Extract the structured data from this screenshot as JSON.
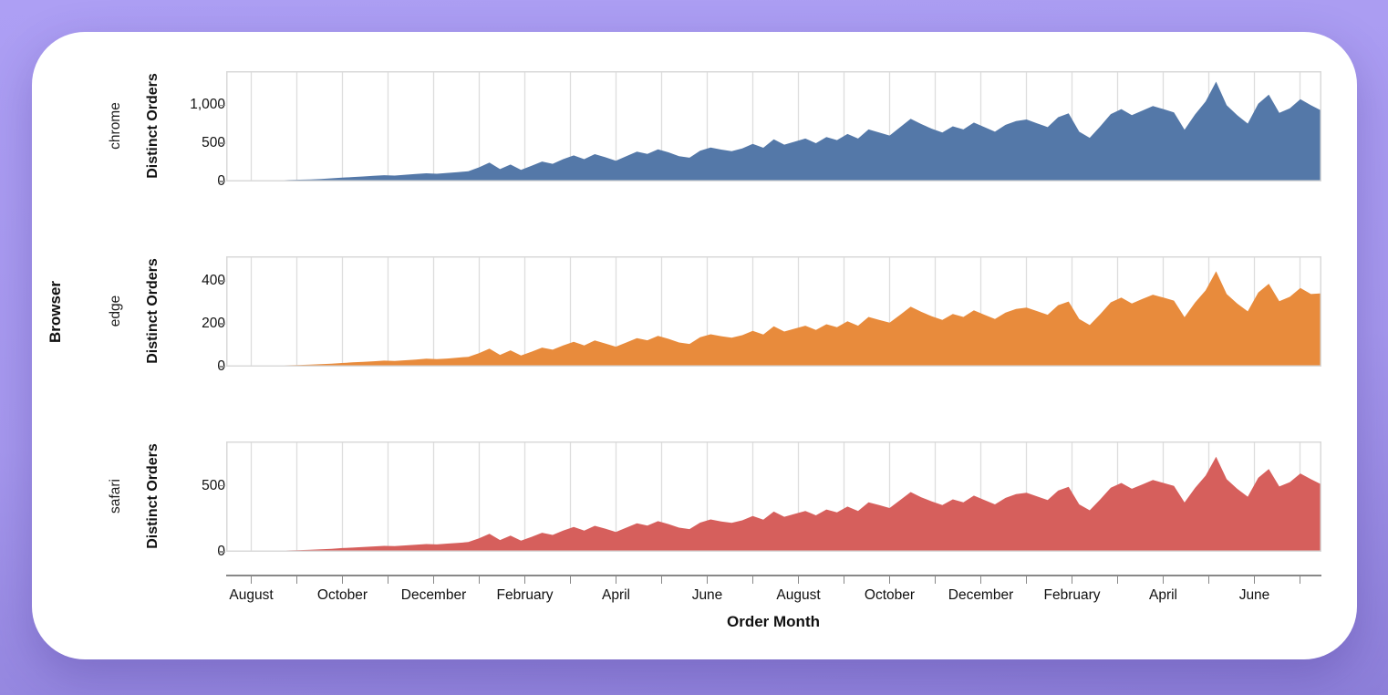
{
  "colors": {
    "background_purple": "#a69aef",
    "card_white": "#ffffff",
    "gridline": "#dddddd",
    "plot_border": "#d9d9d9",
    "axis_line": "#888888",
    "text": "#111111"
  },
  "chart_data": {
    "type": "area",
    "facet_field": "Browser",
    "xlabel": "Order Month",
    "ylabel": "Distinct Orders",
    "x_unit": "week",
    "x_tick_labels": [
      "August",
      "October",
      "December",
      "February",
      "April",
      "June",
      "August",
      "October",
      "December",
      "February",
      "April",
      "June"
    ],
    "x_tick_count": 24,
    "x_label_every": 2,
    "grid": "vertical-only",
    "legend": "none",
    "facets": [
      {
        "name": "chrome",
        "color": "#5478a8",
        "y_max": 1445,
        "y_ticks": [
          0,
          500,
          1000
        ],
        "y_tick_labels": [
          "0",
          "500",
          "1,000"
        ],
        "values": [
          4,
          6,
          8,
          10,
          13,
          16,
          20,
          24,
          28,
          34,
          42,
          50,
          58,
          66,
          74,
          82,
          78,
          88,
          98,
          108,
          102,
          112,
          122,
          135,
          185,
          248,
          162,
          222,
          152,
          205,
          262,
          232,
          292,
          342,
          292,
          358,
          318,
          272,
          332,
          392,
          362,
          422,
          382,
          332,
          312,
          402,
          445,
          418,
          398,
          432,
          492,
          442,
          552,
          482,
          522,
          562,
          502,
          582,
          542,
          622,
          562,
          682,
          642,
          602,
          712,
          822,
          752,
          692,
          642,
          722,
          682,
          772,
          712,
          652,
          742,
          792,
          812,
          762,
          712,
          842,
          892,
          652,
          572,
          722,
          882,
          948,
          868,
          928,
          988,
          948,
          905,
          678,
          878,
          1048,
          1308,
          998,
          868,
          758,
          1018,
          1138,
          898,
          958,
          1078,
          998,
          928
        ]
      },
      {
        "name": "edge",
        "color": "#e88b3c",
        "y_max": 515,
        "y_ticks": [
          0,
          200,
          400
        ],
        "y_tick_labels": [
          "0",
          "200",
          "400"
        ],
        "values": [
          2,
          2,
          3,
          4,
          5,
          6,
          7,
          8,
          10,
          12,
          14,
          17,
          20,
          22,
          25,
          28,
          27,
          30,
          33,
          37,
          35,
          38,
          42,
          46,
          63,
          84,
          55,
          76,
          52,
          70,
          89,
          79,
          99,
          116,
          99,
          122,
          108,
          93,
          113,
          133,
          123,
          144,
          130,
          113,
          106,
          137,
          151,
          142,
          135,
          147,
          167,
          150,
          188,
          164,
          178,
          191,
          171,
          198,
          184,
          212,
          191,
          232,
          218,
          205,
          242,
          280,
          256,
          235,
          218,
          246,
          232,
          263,
          242,
          222,
          252,
          269,
          276,
          259,
          242,
          287,
          304,
          222,
          194,
          245,
          300,
          322,
          295,
          316,
          336,
          322,
          308,
          231,
          299,
          356,
          445,
          339,
          295,
          258,
          346,
          387,
          305,
          326,
          367,
          339,
          342
        ]
      },
      {
        "name": "safari",
        "color": "#d65f5c",
        "y_max": 835,
        "y_ticks": [
          0,
          500
        ],
        "y_tick_labels": [
          "0",
          "500"
        ],
        "values": [
          2,
          3,
          4,
          6,
          7,
          9,
          11,
          13,
          15,
          19,
          23,
          28,
          32,
          36,
          41,
          45,
          43,
          48,
          54,
          59,
          56,
          62,
          67,
          74,
          102,
          136,
          89,
          122,
          84,
          113,
          144,
          128,
          161,
          188,
          161,
          197,
          175,
          150,
          183,
          216,
          199,
          232,
          210,
          183,
          172,
          221,
          245,
          230,
          219,
          238,
          271,
          243,
          304,
          265,
          287,
          309,
          276,
          320,
          298,
          342,
          309,
          375,
          353,
          331,
          392,
          452,
          413,
          381,
          353,
          397,
          375,
          425,
          392,
          359,
          408,
          436,
          447,
          419,
          392,
          463,
          491,
          359,
          314,
          397,
          485,
          521,
          477,
          510,
          543,
          521,
          498,
          373,
          483,
          576,
          719,
          549,
          477,
          417,
          560,
          626,
          494,
          527,
          593,
          549,
          510
        ]
      }
    ]
  }
}
